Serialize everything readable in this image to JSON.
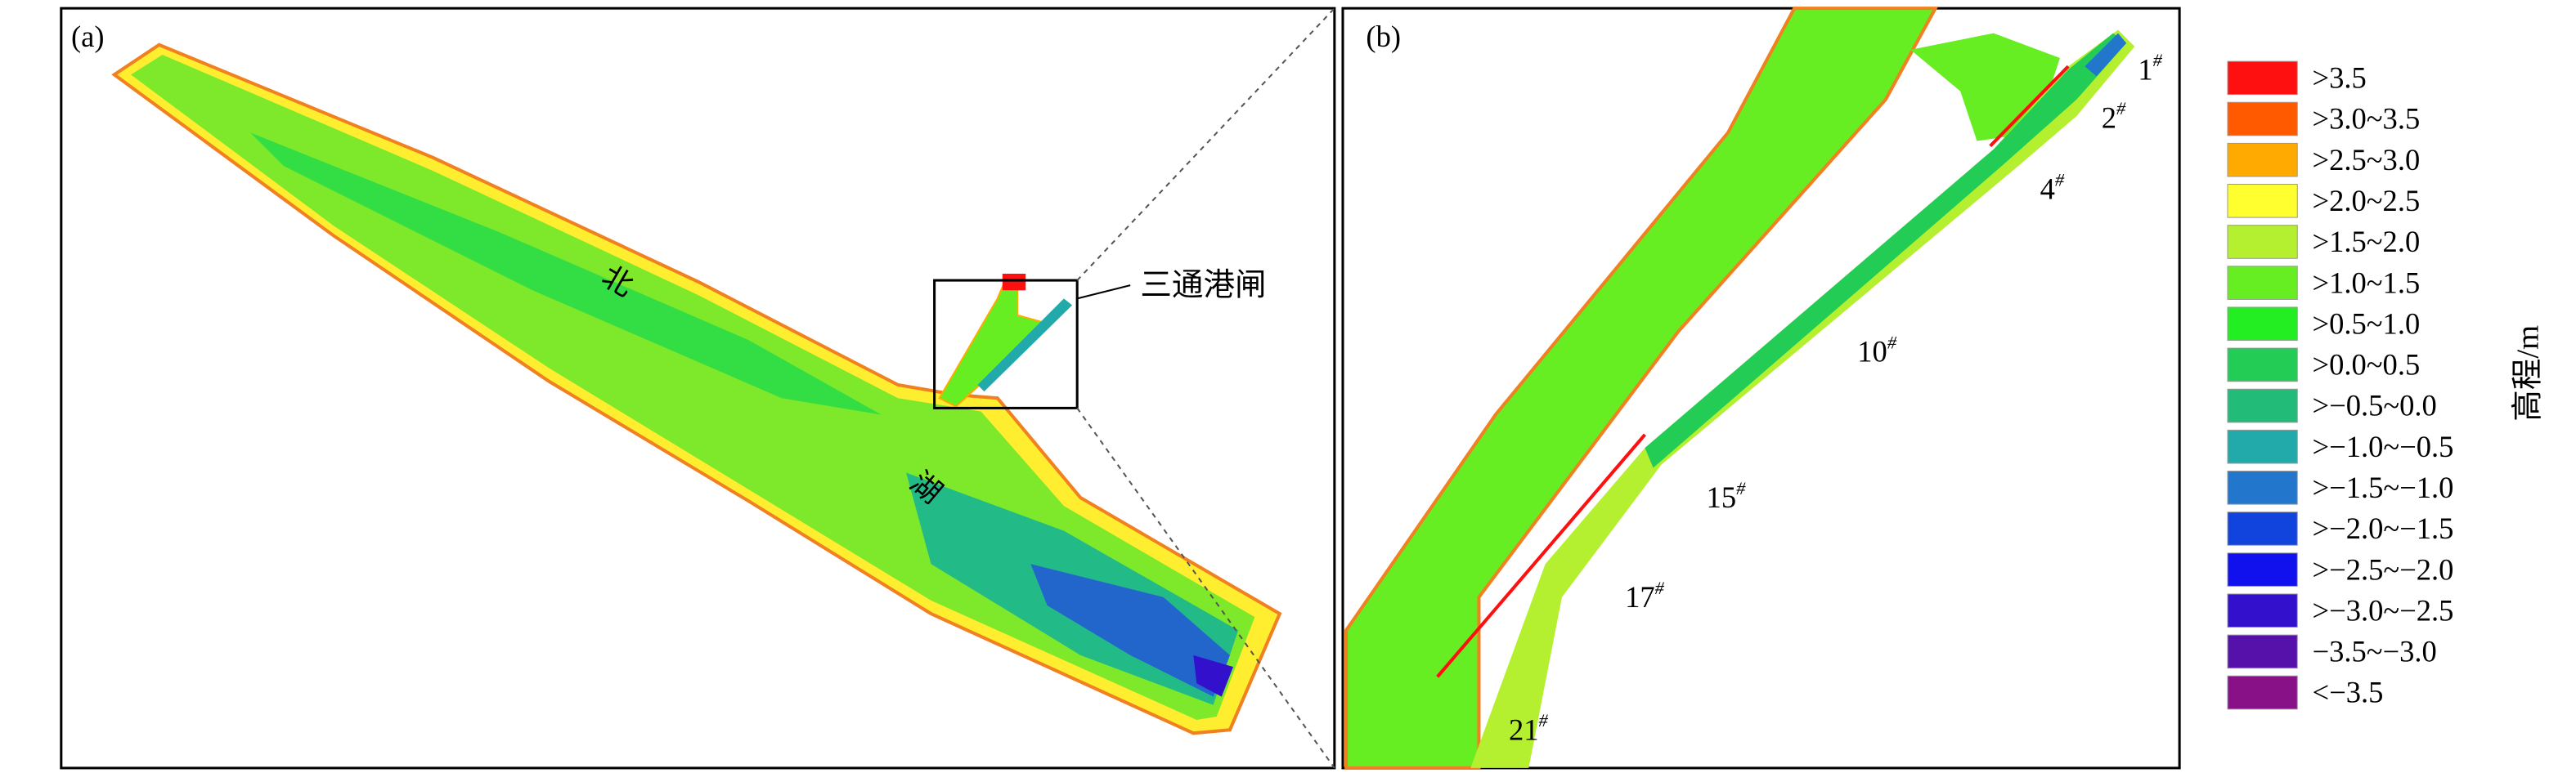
{
  "panel_a": {
    "label": "(a)",
    "annotations": [
      "北",
      "湖",
      "三通港闸"
    ]
  },
  "panel_b": {
    "label": "(b)",
    "stations": [
      "1",
      "2",
      "4",
      "10",
      "15",
      "17",
      "21"
    ],
    "station_mark": "#"
  },
  "legend": {
    "title": "高程/m",
    "items": [
      {
        "label": ">3.5",
        "color": "#ff1010"
      },
      {
        "label": ">3.0~3.5",
        "color": "#ff5a00"
      },
      {
        "label": ">2.5~3.0",
        "color": "#ffaa00"
      },
      {
        "label": ">2.0~2.5",
        "color": "#ffff30"
      },
      {
        "label": ">1.5~2.0",
        "color": "#b4f030"
      },
      {
        "label": ">1.0~1.5",
        "color": "#66ee22"
      },
      {
        "label": ">0.5~1.0",
        "color": "#22ee22"
      },
      {
        "label": ">0.0~0.5",
        "color": "#22cc55"
      },
      {
        "label": ">−0.5~0.0",
        "color": "#22bb77"
      },
      {
        "label": ">−1.0~−0.5",
        "color": "#22aaaa"
      },
      {
        "label": ">−1.5~−1.0",
        "color": "#2277cc"
      },
      {
        "label": ">−2.0~−1.5",
        "color": "#1144dd"
      },
      {
        "label": ">−2.5~−2.0",
        "color": "#1111ee"
      },
      {
        "label": ">−3.0~−2.5",
        "color": "#3311cc"
      },
      {
        "label": "−3.5~−3.0",
        "color": "#5511aa"
      },
      {
        "label": "<−3.5",
        "color": "#881188"
      }
    ]
  }
}
